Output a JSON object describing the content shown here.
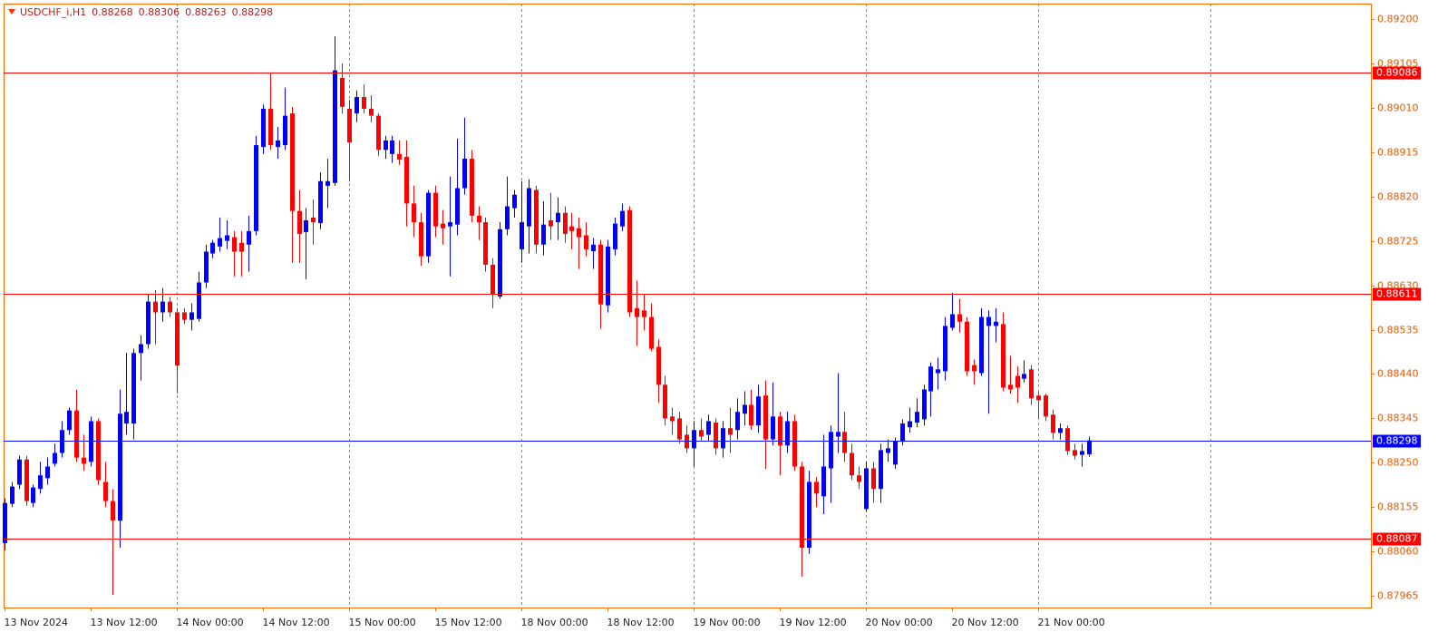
{
  "chart_data": {
    "type": "candlestick",
    "title": "USDCHF_i,H1",
    "up_color": "#0000ff",
    "down_color": "#ff0000",
    "open": [
      0.88078,
      0.88162,
      0.88203,
      0.88257,
      0.88164,
      0.88194,
      0.88217,
      0.88248,
      0.88271,
      0.8832,
      0.88362,
      0.88261,
      0.88252,
      0.88339,
      0.88209,
      0.88168,
      0.88126,
      0.88334,
      0.88334,
      0.88485,
      0.88504,
      0.88595,
      0.88572,
      0.88595,
      0.88572,
      0.88572,
      0.88556,
      0.88558,
      0.88636,
      0.88698,
      0.88713,
      0.88725,
      0.88733,
      0.88721,
      0.88717,
      0.88746,
      0.88926,
      0.89008,
      0.88926,
      0.8893,
      0.88998,
      0.88789,
      0.88744,
      0.88775,
      0.88763,
      0.88843,
      0.88849,
      0.89074,
      0.89008,
      0.88998,
      0.89033,
      0.89008,
      0.88993,
      0.8892,
      0.88911,
      0.88911,
      0.88905,
      0.88805,
      0.88765,
      0.88692,
      0.88828,
      0.88762,
      0.88756,
      0.8876,
      0.88838,
      0.88901,
      0.88779,
      0.88765,
      0.88674,
      0.88606,
      0.8875,
      0.88795,
      0.88707,
      0.88756,
      0.88834,
      0.88717,
      0.88769,
      0.88765,
      0.88785,
      0.88756,
      0.88752,
      0.88737,
      0.88703,
      0.88717,
      0.88587,
      0.88707,
      0.88756,
      0.88791,
      0.88581,
      0.88576,
      0.88562,
      0.88498,
      0.88417,
      0.88349,
      0.88345,
      0.8831,
      0.88281,
      0.8832,
      0.8831,
      0.88336,
      0.88281,
      0.88324,
      0.8832,
      0.88355,
      0.88374,
      0.8833,
      0.88394,
      0.883,
      0.88349,
      0.88287,
      0.88339,
      0.88242,
      0.88068,
      0.88209,
      0.88178,
      0.88238,
      0.88306,
      0.88316,
      0.88271,
      0.88223,
      0.88151,
      0.88238,
      0.88194,
      0.88271,
      0.88246,
      0.88295,
      0.88326,
      0.88336,
      0.88343,
      0.88403,
      0.88442,
      0.88446,
      0.88539,
      0.88568,
      0.88552,
      0.88459,
      0.88442,
      0.88543,
      0.88543,
      0.88547,
      0.88417,
      0.88436,
      0.8843,
      0.8845,
      0.88394,
      0.88394,
      0.88353,
      0.88314,
      0.88324,
      0.88277,
      0.88267,
      0.88268
    ],
    "high": [
      0.88174,
      0.88209,
      0.88265,
      0.88265,
      0.88203,
      0.88252,
      0.88261,
      0.88291,
      0.88339,
      0.88368,
      0.88407,
      0.8831,
      0.88349,
      0.88345,
      0.88252,
      0.88194,
      0.88407,
      0.88485,
      0.88494,
      0.88523,
      0.8861,
      0.8862,
      0.88624,
      0.88605,
      0.88581,
      0.88581,
      0.88591,
      0.88659,
      0.88717,
      0.88727,
      0.88775,
      0.88769,
      0.88746,
      0.88746,
      0.88779,
      0.8895,
      0.89017,
      0.89086,
      0.88969,
      0.89053,
      0.89012,
      0.88834,
      0.88795,
      0.88814,
      0.88872,
      0.88901,
      0.89163,
      0.89105,
      0.89027,
      0.89047,
      0.8906,
      0.89037,
      0.88998,
      0.8895,
      0.8895,
      0.8894,
      0.8894,
      0.88843,
      0.88785,
      0.88834,
      0.88843,
      0.88791,
      0.88863,
      0.88944,
      0.88989,
      0.8892,
      0.88799,
      0.88775,
      0.88688,
      0.88765,
      0.88863,
      0.88834,
      0.88853,
      0.88857,
      0.88843,
      0.8881,
      0.88828,
      0.88818,
      0.88799,
      0.88785,
      0.88775,
      0.88765,
      0.88731,
      0.88727,
      0.88727,
      0.88775,
      0.88805,
      0.88799,
      0.8864,
      0.8861,
      0.88591,
      0.88514,
      0.88436,
      0.88368,
      0.88359,
      0.8833,
      0.88339,
      0.88345,
      0.88353,
      0.88345,
      0.88339,
      0.88368,
      0.88388,
      0.88403,
      0.88407,
      0.88417,
      0.88426,
      0.88422,
      0.88359,
      0.88359,
      0.88353,
      0.88252,
      0.88233,
      0.88219,
      0.8831,
      0.8833,
      0.88442,
      0.88359,
      0.88291,
      0.88242,
      0.88252,
      0.88252,
      0.88291,
      0.883,
      0.88304,
      0.88343,
      0.88368,
      0.88388,
      0.88417,
      0.88465,
      0.88475,
      0.88562,
      0.88614,
      0.88601,
      0.88562,
      0.88471,
      0.88581,
      0.88576,
      0.88581,
      0.88572,
      0.88479,
      0.88456,
      0.88469,
      0.88459,
      0.88401,
      0.88398,
      0.88364,
      0.88334,
      0.8833,
      0.88291,
      0.88291,
      0.88306
    ],
    "low": [
      0.88062,
      0.88155,
      0.88194,
      0.88158,
      0.88155,
      0.88184,
      0.88203,
      0.88242,
      0.88261,
      0.8831,
      0.88252,
      0.88233,
      0.88242,
      0.88203,
      0.88155,
      0.87967,
      0.88068,
      0.8831,
      0.883,
      0.88426,
      0.88494,
      0.88504,
      0.88552,
      0.88562,
      0.88398,
      0.88547,
      0.88533,
      0.88552,
      0.88624,
      0.88688,
      0.88702,
      0.88707,
      0.88649,
      0.88649,
      0.88659,
      0.88737,
      0.88911,
      0.8892,
      0.88901,
      0.8892,
      0.88678,
      0.88678,
      0.88643,
      0.88717,
      0.8875,
      0.88795,
      0.88843,
      0.88998,
      0.88853,
      0.88979,
      0.88998,
      0.88979,
      0.88907,
      0.88901,
      0.88892,
      0.88888,
      0.88756,
      0.88733,
      0.88672,
      0.88678,
      0.88733,
      0.88717,
      0.88649,
      0.88737,
      0.88824,
      0.88765,
      0.88727,
      0.88659,
      0.88581,
      0.88601,
      0.88737,
      0.88775,
      0.88678,
      0.88698,
      0.88698,
      0.88694,
      0.88727,
      0.88727,
      0.88721,
      0.88707,
      0.88665,
      0.88692,
      0.88665,
      0.88537,
      0.88572,
      0.88694,
      0.88746,
      0.88562,
      0.885,
      0.88533,
      0.88489,
      0.88378,
      0.8833,
      0.8831,
      0.88291,
      0.88271,
      0.88242,
      0.88295,
      0.88297,
      0.88267,
      0.88261,
      0.88271,
      0.883,
      0.8833,
      0.8832,
      0.88314,
      0.88237,
      0.88287,
      0.88223,
      0.88271,
      0.88233,
      0.88006,
      0.88055,
      0.88155,
      0.8814,
      0.88164,
      0.88271,
      0.88252,
      0.88213,
      0.88194,
      0.88145,
      0.88164,
      0.88164,
      0.88252,
      0.88237,
      0.88287,
      0.88314,
      0.88326,
      0.8833,
      0.88349,
      0.88407,
      0.88426,
      0.88533,
      0.88529,
      0.88436,
      0.88417,
      0.88436,
      0.88355,
      0.88508,
      0.88403,
      0.88398,
      0.88378,
      0.88422,
      0.88374,
      0.88345,
      0.88339,
      0.883,
      0.883,
      0.88267,
      0.88257,
      0.88242,
      0.88263
    ],
    "close": [
      0.88164,
      0.88199,
      0.88257,
      0.88168,
      0.88197,
      0.88223,
      0.88242,
      0.88271,
      0.8832,
      0.88362,
      0.88261,
      0.88248,
      0.88339,
      0.88213,
      0.88168,
      0.88126,
      0.88355,
      0.88359,
      0.88485,
      0.88504,
      0.88595,
      0.88572,
      0.88595,
      0.88572,
      0.88458,
      0.88556,
      0.88572,
      0.88636,
      0.88702,
      0.88721,
      0.88731,
      0.88737,
      0.88702,
      0.88702,
      0.88746,
      0.8893,
      0.89008,
      0.8893,
      0.8894,
      0.88993,
      0.88789,
      0.8874,
      0.88769,
      0.88765,
      0.88853,
      0.88853,
      0.8909,
      0.89012,
      0.88936,
      0.89033,
      0.89008,
      0.88993,
      0.8892,
      0.8894,
      0.8894,
      0.88899,
      0.88805,
      0.88765,
      0.88692,
      0.88828,
      0.88756,
      0.88752,
      0.88765,
      0.88838,
      0.88901,
      0.88779,
      0.88765,
      0.88674,
      0.8861,
      0.8875,
      0.88799,
      0.88824,
      0.88765,
      0.88838,
      0.88717,
      0.8876,
      0.88756,
      0.88785,
      0.8874,
      0.88746,
      0.88733,
      0.88707,
      0.88717,
      0.88589,
      0.88713,
      0.88762,
      0.88789,
      0.88572,
      0.88562,
      0.88562,
      0.88494,
      0.88417,
      0.88345,
      0.88339,
      0.883,
      0.88281,
      0.8832,
      0.88306,
      0.88339,
      0.88281,
      0.88324,
      0.8831,
      0.88359,
      0.88374,
      0.8833,
      0.88392,
      0.883,
      0.88349,
      0.88287,
      0.88339,
      0.88242,
      0.88068,
      0.88209,
      0.88184,
      0.88242,
      0.88316,
      0.88316,
      0.88271,
      0.88223,
      0.88209,
      0.88238,
      0.88194,
      0.88277,
      0.88281,
      0.88297,
      0.88334,
      0.88339,
      0.88359,
      0.88407,
      0.88456,
      0.8845,
      0.88543,
      0.88568,
      0.88552,
      0.88446,
      0.88446,
      0.88562,
      0.88562,
      0.88552,
      0.88411,
      0.88407,
      0.88411,
      0.8844,
      0.88388,
      0.88384,
      0.88349,
      0.88314,
      0.88324,
      0.88275,
      0.88265,
      0.88275,
      0.88298
    ],
    "xlim": [
      -0.1,
      190.3
    ],
    "xticks": [
      {
        "value": 0,
        "label": "13 Nov 2024"
      },
      {
        "value": 12,
        "label": "13 Nov 12:00"
      },
      {
        "value": 24,
        "label": "14 Nov 00:00"
      },
      {
        "value": 36,
        "label": "14 Nov 12:00"
      },
      {
        "value": 48,
        "label": "15 Nov 00:00"
      },
      {
        "value": 60,
        "label": "15 Nov 12:00"
      },
      {
        "value": 72,
        "label": "18 Nov 00:00"
      },
      {
        "value": 84,
        "label": "18 Nov 12:00"
      },
      {
        "value": 96,
        "label": "19 Nov 00:00"
      },
      {
        "value": 108,
        "label": "19 Nov 12:00"
      },
      {
        "value": 120,
        "label": "20 Nov 00:00"
      },
      {
        "value": 132,
        "label": "20 Nov 12:00"
      },
      {
        "value": 144,
        "label": "21 Nov 00:00"
      }
    ],
    "separators": [
      24,
      48,
      72,
      96,
      120,
      144,
      168
    ],
    "ylim": [
      0.8794,
      0.89233
    ],
    "yticks": [
      {
        "value": 0.892,
        "label": "0.89200"
      },
      0.89105,
      {
        "value": 0.8901,
        "label": "0.89010"
      },
      0.88915,
      {
        "value": 0.8882,
        "label": "0.88820"
      },
      0.88725,
      {
        "value": 0.8863,
        "label": "0.88630"
      },
      0.88535,
      {
        "value": 0.8844,
        "label": "0.88440"
      },
      0.88345,
      {
        "value": 0.8825,
        "label": "0.88250"
      },
      0.88155,
      {
        "value": 0.8806,
        "label": "0.88060"
      },
      0.87965
    ],
    "levels": [
      {
        "value": 0.89086,
        "color": "#ff0000"
      },
      {
        "value": 0.88611,
        "color": "#ff0000"
      },
      {
        "value": 0.88298,
        "color": "#0000ff"
      },
      {
        "value": 0.88087,
        "color": "#ff0000"
      }
    ]
  }
}
